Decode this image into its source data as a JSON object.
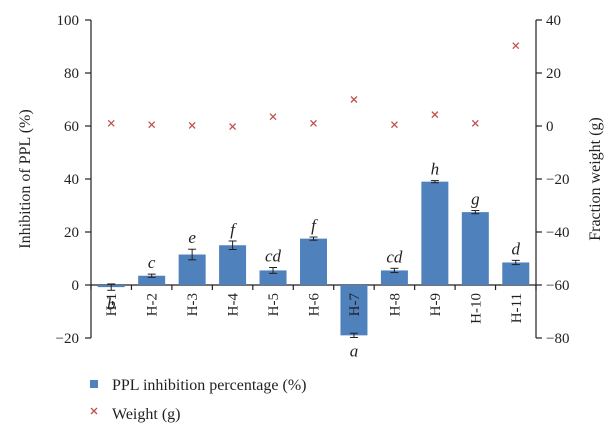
{
  "chart_data": {
    "type": "bar",
    "categories": [
      "H-1",
      "H-2",
      "H-3",
      "H-4",
      "H-5",
      "H-6",
      "H-7",
      "H-8",
      "H-9",
      "H-10",
      "H-11"
    ],
    "series": [
      {
        "name": "PPL inhibition percentage (%)",
        "kind": "bar",
        "axis": "left",
        "color": "#4f81bd",
        "values": [
          -0.8,
          3.5,
          11.5,
          15.0,
          5.5,
          17.5,
          -19.0,
          5.5,
          39.0,
          27.5,
          8.5
        ],
        "errors": [
          1.2,
          0.6,
          2.0,
          1.6,
          1.1,
          0.6,
          0.8,
          0.8,
          0.4,
          0.6,
          0.8
        ],
        "significance": [
          "b",
          "c",
          "e",
          "f",
          "cd",
          "f",
          "a",
          "cd",
          "h",
          "g",
          "d"
        ]
      },
      {
        "name": "Weight (g)",
        "kind": "scatter",
        "axis": "right",
        "color": "#c0504d",
        "marker": "x",
        "values": [
          1.0,
          0.5,
          0.2,
          -0.2,
          3.5,
          1.0,
          10.0,
          0.5,
          4.3,
          1.0,
          30.3
        ]
      }
    ],
    "ylabel": "Inhibition of PPL (%)",
    "y2label": "Fraction weight (g)",
    "ylim": [
      -20,
      100
    ],
    "y2lim": [
      -80,
      40
    ],
    "yticks": [
      "100",
      "80",
      "60",
      "40",
      "20",
      "0",
      "−20"
    ],
    "y2ticks": [
      "40",
      "20",
      "0",
      "−20",
      "−40",
      "−60",
      "−80"
    ],
    "grid": false,
    "legend_position": "bottom-left"
  }
}
